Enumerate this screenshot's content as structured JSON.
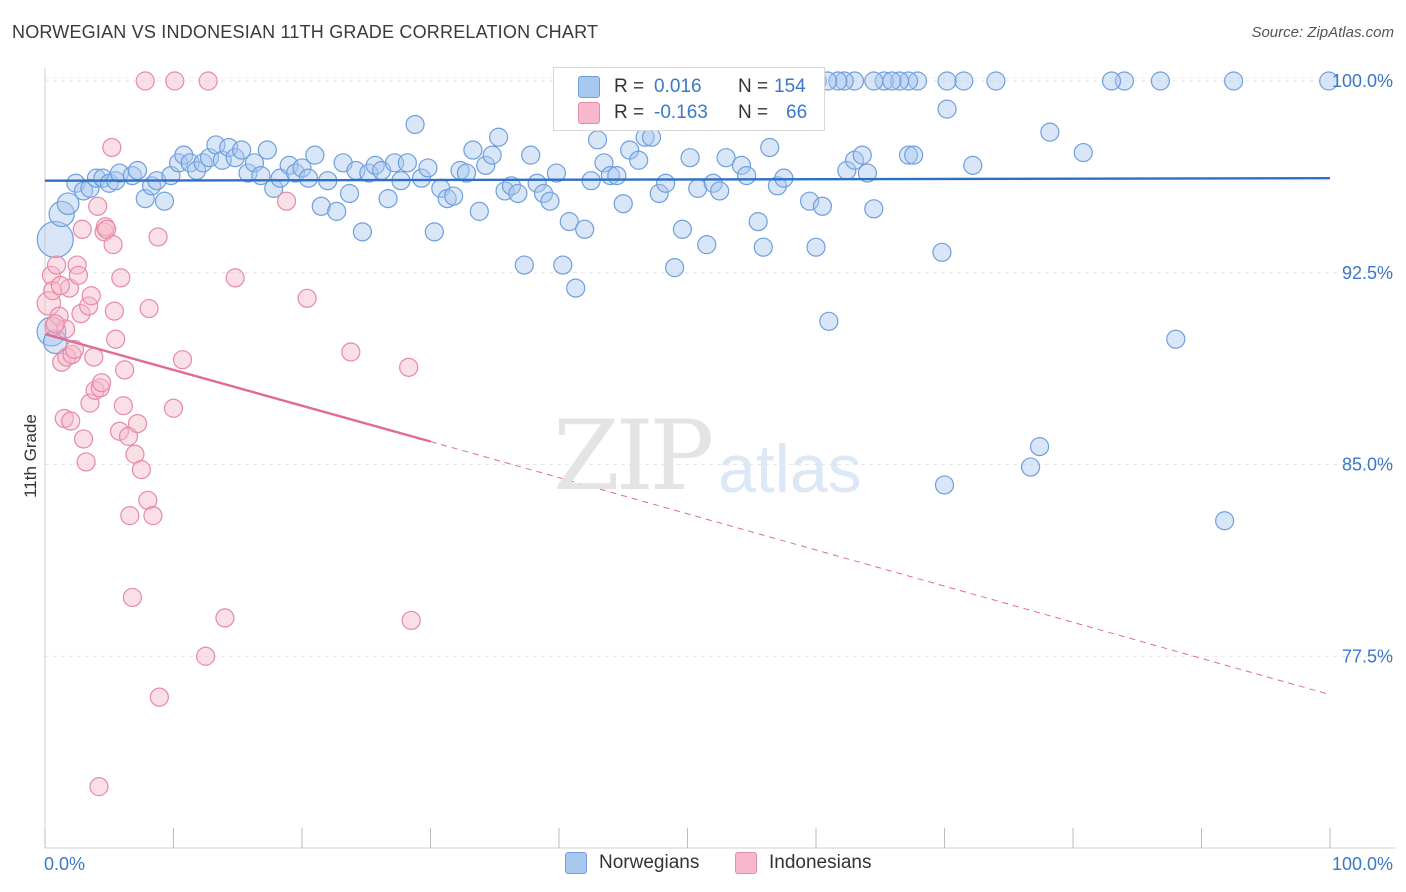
{
  "header": {
    "title": "NORWEGIAN VS INDONESIAN 11TH GRADE CORRELATION CHART",
    "source": "Source: ZipAtlas.com"
  },
  "watermark": {
    "zip": "ZIP",
    "atlas": "atlas"
  },
  "legend_top": {
    "rows": [
      {
        "r_label": "R =",
        "r_value": "0.016",
        "n_label": "N =",
        "n_value": "154",
        "color": "#a9c8ef"
      },
      {
        "r_label": "R =",
        "r_value": "-0.163",
        "n_label": "N =",
        "n_value": "66",
        "color": "#f6b8ca"
      }
    ]
  },
  "legend_bottom": {
    "items": [
      {
        "label": "Norwegians",
        "color": "#a9c8ef"
      },
      {
        "label": "Indonesians",
        "color": "#f6b8ca"
      }
    ]
  },
  "chart_data": {
    "type": "scatter",
    "title": "NORWEGIAN VS INDONESIAN 11TH GRADE CORRELATION CHART",
    "ylabel": "11th Grade",
    "xlabel": "",
    "x_tick_labels": [
      "0.0%",
      "100.0%"
    ],
    "y_tick_labels": [
      "100.0%",
      "92.5%",
      "85.0%",
      "77.5%"
    ],
    "y_ticks": [
      100.0,
      92.5,
      85.0,
      77.5
    ],
    "xlim": [
      0,
      100
    ],
    "ylim": [
      70.5,
      101.0
    ],
    "grid": true,
    "legend_position": "top-center",
    "series": [
      {
        "name": "Norwegians",
        "color": "#a9c8ef",
        "stroke": "#6f9fdc",
        "trend": {
          "x": [
            0,
            100
          ],
          "y": [
            96.1,
            96.2
          ],
          "color": "#2e6fc4"
        },
        "points": [
          [
            0.8,
            93.8,
            2.0
          ],
          [
            1.3,
            94.8,
            1.4
          ],
          [
            1.8,
            95.2,
            1.2
          ],
          [
            2.4,
            96.0,
            1.0
          ],
          [
            3.0,
            95.7,
            1.0
          ],
          [
            3.5,
            95.8,
            1.0
          ],
          [
            4.0,
            96.2,
            1.0
          ],
          [
            4.5,
            96.2,
            1.0
          ],
          [
            5.0,
            96.0,
            1.0
          ],
          [
            5.5,
            96.1,
            1.0
          ],
          [
            5.8,
            96.4,
            1.0
          ],
          [
            6.8,
            96.3,
            1.0
          ],
          [
            7.2,
            96.5,
            1.0
          ],
          [
            7.8,
            95.4,
            1.0
          ],
          [
            8.3,
            95.9,
            1.0
          ],
          [
            8.7,
            96.1,
            1.0
          ],
          [
            9.3,
            95.3,
            1.0
          ],
          [
            9.8,
            96.3,
            1.0
          ],
          [
            10.4,
            96.8,
            1.0
          ],
          [
            10.8,
            97.1,
            1.0
          ],
          [
            11.3,
            96.8,
            1.0
          ],
          [
            11.8,
            96.5,
            1.0
          ],
          [
            12.3,
            96.8,
            1.0
          ],
          [
            12.8,
            97.0,
            1.0
          ],
          [
            13.3,
            97.5,
            1.0
          ],
          [
            13.8,
            96.9,
            1.0
          ],
          [
            14.3,
            97.4,
            1.0
          ],
          [
            14.8,
            97.0,
            1.0
          ],
          [
            15.3,
            97.3,
            1.0
          ],
          [
            15.8,
            96.4,
            1.0
          ],
          [
            16.3,
            96.8,
            1.0
          ],
          [
            16.8,
            96.3,
            1.0
          ],
          [
            17.3,
            97.3,
            1.0
          ],
          [
            17.8,
            95.8,
            1.0
          ],
          [
            18.3,
            96.2,
            1.0
          ],
          [
            19.0,
            96.7,
            1.0
          ],
          [
            19.5,
            96.4,
            1.0
          ],
          [
            20.0,
            96.6,
            1.0
          ],
          [
            20.5,
            96.2,
            1.0
          ],
          [
            21.0,
            97.1,
            1.0
          ],
          [
            21.5,
            95.1,
            1.0
          ],
          [
            22.0,
            96.1,
            1.0
          ],
          [
            22.7,
            94.9,
            1.0
          ],
          [
            23.2,
            96.8,
            1.0
          ],
          [
            23.7,
            95.6,
            1.0
          ],
          [
            24.2,
            96.5,
            1.0
          ],
          [
            24.7,
            94.1,
            1.0
          ],
          [
            25.2,
            96.4,
            1.0
          ],
          [
            25.7,
            96.7,
            1.0
          ],
          [
            26.2,
            96.5,
            1.0
          ],
          [
            26.7,
            95.4,
            1.0
          ],
          [
            27.2,
            96.8,
            1.0
          ],
          [
            27.7,
            96.1,
            1.0
          ],
          [
            28.2,
            96.8,
            1.0
          ],
          [
            28.8,
            98.3,
            1.0
          ],
          [
            29.3,
            96.2,
            1.0
          ],
          [
            29.8,
            96.6,
            1.0
          ],
          [
            30.3,
            94.1,
            1.0
          ],
          [
            30.8,
            95.8,
            1.0
          ],
          [
            31.3,
            95.4,
            1.0
          ],
          [
            31.8,
            95.5,
            1.0
          ],
          [
            32.3,
            96.5,
            1.0
          ],
          [
            32.8,
            96.4,
            1.0
          ],
          [
            33.3,
            97.3,
            1.0
          ],
          [
            33.8,
            94.9,
            1.0
          ],
          [
            34.3,
            96.7,
            1.0
          ],
          [
            34.8,
            97.1,
            1.0
          ],
          [
            35.3,
            97.8,
            1.0
          ],
          [
            35.8,
            95.7,
            1.0
          ],
          [
            36.3,
            95.9,
            1.0
          ],
          [
            36.8,
            95.6,
            1.0
          ],
          [
            37.3,
            92.8,
            1.0
          ],
          [
            37.8,
            97.1,
            1.0
          ],
          [
            38.3,
            96.0,
            1.0
          ],
          [
            38.8,
            95.6,
            1.0
          ],
          [
            39.3,
            95.3,
            1.0
          ],
          [
            39.8,
            96.4,
            1.0
          ],
          [
            40.3,
            92.8,
            1.0
          ],
          [
            40.8,
            94.5,
            1.0
          ],
          [
            41.3,
            91.9,
            1.0
          ],
          [
            42.0,
            94.2,
            1.0
          ],
          [
            42.5,
            96.1,
            1.0
          ],
          [
            43.0,
            97.7,
            1.0
          ],
          [
            43.5,
            96.8,
            1.0
          ],
          [
            44.0,
            96.3,
            1.0
          ],
          [
            44.5,
            96.3,
            1.0
          ],
          [
            45.0,
            95.2,
            1.0
          ],
          [
            45.5,
            97.3,
            1.0
          ],
          [
            46.2,
            96.9,
            1.0
          ],
          [
            46.7,
            97.8,
            1.0
          ],
          [
            47.2,
            97.8,
            1.0
          ],
          [
            47.8,
            95.6,
            1.0
          ],
          [
            48.3,
            96.0,
            1.0
          ],
          [
            49.0,
            92.7,
            1.0
          ],
          [
            49.6,
            94.2,
            1.0
          ],
          [
            50.2,
            97.0,
            1.0
          ],
          [
            50.8,
            95.8,
            1.0
          ],
          [
            51.5,
            93.6,
            1.0
          ],
          [
            52.0,
            96.0,
            1.0
          ],
          [
            52.5,
            95.7,
            1.0
          ],
          [
            53.0,
            97.0,
            1.0
          ],
          [
            54.2,
            96.7,
            1.0
          ],
          [
            54.6,
            96.3,
            1.0
          ],
          [
            55.5,
            94.5,
            1.0
          ],
          [
            55.9,
            93.5,
            1.0
          ],
          [
            56.4,
            97.4,
            1.0
          ],
          [
            57.0,
            95.9,
            1.0
          ],
          [
            57.5,
            96.2,
            1.0
          ],
          [
            59.5,
            95.3,
            1.0
          ],
          [
            60.0,
            93.5,
            1.0
          ],
          [
            60.5,
            95.1,
            1.0
          ],
          [
            61.0,
            90.6,
            1.0
          ],
          [
            62.4,
            96.5,
            1.0
          ],
          [
            63.0,
            96.9,
            1.0
          ],
          [
            63.6,
            97.1,
            1.0
          ],
          [
            64.5,
            95.0,
            1.0
          ],
          [
            67.2,
            97.1,
            1.0
          ],
          [
            67.6,
            97.1,
            1.0
          ],
          [
            69.8,
            93.3,
            1.0
          ],
          [
            70.2,
            98.9,
            1.0
          ],
          [
            72.2,
            96.7,
            1.0
          ],
          [
            77.4,
            85.7,
            1.0
          ],
          [
            78.2,
            98.0,
            1.0
          ],
          [
            80.8,
            97.2,
            1.0
          ],
          [
            64.0,
            96.4,
            1.0
          ],
          [
            70.0,
            84.2,
            1.0
          ],
          [
            76.7,
            84.9,
            1.0
          ],
          [
            88.0,
            89.9,
            1.0
          ],
          [
            91.8,
            82.8,
            1.0
          ],
          [
            99.9,
            100.0,
            1.0
          ],
          [
            92.5,
            100.0,
            1.0
          ],
          [
            86.8,
            100.0,
            1.0
          ],
          [
            84.0,
            100.0,
            1.0
          ],
          [
            83.0,
            100.0,
            1.0
          ],
          [
            74.0,
            100.0,
            1.0
          ],
          [
            71.5,
            100.0,
            1.0
          ],
          [
            70.2,
            100.0,
            1.0
          ],
          [
            67.9,
            100.0,
            1.0
          ],
          [
            67.2,
            100.0,
            1.0
          ],
          [
            66.5,
            100.0,
            1.0
          ],
          [
            65.3,
            100.0,
            1.0
          ],
          [
            64.5,
            100.0,
            1.0
          ],
          [
            63.0,
            100.0,
            1.0
          ],
          [
            62.2,
            100.0,
            1.0
          ],
          [
            61.7,
            100.0,
            1.0
          ],
          [
            60.1,
            100.0,
            1.0
          ],
          [
            58.9,
            100.0,
            1.0
          ],
          [
            56.5,
            100.0,
            1.0
          ],
          [
            55.0,
            99.0,
            1.0
          ],
          [
            54.0,
            100.0,
            1.0
          ],
          [
            0.5,
            90.2,
            1.6
          ],
          [
            0.8,
            89.8,
            1.3
          ],
          [
            60.9,
            100.0,
            1.0
          ],
          [
            65.9,
            100.0,
            1.0
          ]
        ]
      },
      {
        "name": "Indonesians",
        "color": "#f6b8ca",
        "stroke": "#e58aa7",
        "trend": {
          "x": [
            0,
            30
          ],
          "y": [
            90.1,
            85.9
          ],
          "color": "#e06b94"
        },
        "trend_dashed": {
          "x": [
            30,
            100
          ],
          "y": [
            85.9,
            76.0
          ]
        },
        "points": [
          [
            0.3,
            91.3,
            1.3
          ],
          [
            0.5,
            92.4,
            1.0
          ],
          [
            0.6,
            91.8,
            1.0
          ],
          [
            0.7,
            90.4,
            1.0
          ],
          [
            0.9,
            92.8,
            1.0
          ],
          [
            1.1,
            90.8,
            1.0
          ],
          [
            1.3,
            89.0,
            1.0
          ],
          [
            1.5,
            86.8,
            1.0
          ],
          [
            1.6,
            90.3,
            1.0
          ],
          [
            1.7,
            89.2,
            1.0
          ],
          [
            1.9,
            91.9,
            1.0
          ],
          [
            2.0,
            86.7,
            1.0
          ],
          [
            2.1,
            89.3,
            1.0
          ],
          [
            2.3,
            89.5,
            1.0
          ],
          [
            2.5,
            92.8,
            1.0
          ],
          [
            2.6,
            92.4,
            1.0
          ],
          [
            2.8,
            90.9,
            1.0
          ],
          [
            2.9,
            94.2,
            1.0
          ],
          [
            3.0,
            86.0,
            1.0
          ],
          [
            3.2,
            85.1,
            1.0
          ],
          [
            3.4,
            91.2,
            1.0
          ],
          [
            3.5,
            87.4,
            1.0
          ],
          [
            3.6,
            91.6,
            1.0
          ],
          [
            3.8,
            89.2,
            1.0
          ],
          [
            3.9,
            87.9,
            1.0
          ],
          [
            4.1,
            95.1,
            1.0
          ],
          [
            4.3,
            88.0,
            1.0
          ],
          [
            4.4,
            88.2,
            1.0
          ],
          [
            4.6,
            94.1,
            1.0
          ],
          [
            4.7,
            94.3,
            1.0
          ],
          [
            4.8,
            94.2,
            1.0
          ],
          [
            5.2,
            97.4,
            1.0
          ],
          [
            5.3,
            93.6,
            1.0
          ],
          [
            5.4,
            91.0,
            1.0
          ],
          [
            5.5,
            89.9,
            1.0
          ],
          [
            5.8,
            86.3,
            1.0
          ],
          [
            5.9,
            92.3,
            1.0
          ],
          [
            6.1,
            87.3,
            1.0
          ],
          [
            6.2,
            88.7,
            1.0
          ],
          [
            6.5,
            86.1,
            1.0
          ],
          [
            6.6,
            83.0,
            1.0
          ],
          [
            6.8,
            79.8,
            1.0
          ],
          [
            7.0,
            85.4,
            1.0
          ],
          [
            7.2,
            86.6,
            1.0
          ],
          [
            7.5,
            84.8,
            1.0
          ],
          [
            7.8,
            100.0,
            1.0
          ],
          [
            8.0,
            83.6,
            1.0
          ],
          [
            8.1,
            91.1,
            1.0
          ],
          [
            8.4,
            83.0,
            1.0
          ],
          [
            8.8,
            93.9,
            1.0
          ],
          [
            8.9,
            75.9,
            1.0
          ],
          [
            10.0,
            87.2,
            1.0
          ],
          [
            10.1,
            100.0,
            1.0
          ],
          [
            10.7,
            89.1,
            1.0
          ],
          [
            12.5,
            77.5,
            1.0
          ],
          [
            12.7,
            100.0,
            1.0
          ],
          [
            14.0,
            79.0,
            1.0
          ],
          [
            14.8,
            92.3,
            1.0
          ],
          [
            18.8,
            95.3,
            1.0
          ],
          [
            20.4,
            91.5,
            1.0
          ],
          [
            23.8,
            89.4,
            1.0
          ],
          [
            28.3,
            88.8,
            1.0
          ],
          [
            28.5,
            78.9,
            1.0
          ],
          [
            4.2,
            72.4,
            1.0
          ],
          [
            0.8,
            90.5,
            1.0
          ],
          [
            1.2,
            92.0,
            1.0
          ]
        ]
      }
    ]
  }
}
